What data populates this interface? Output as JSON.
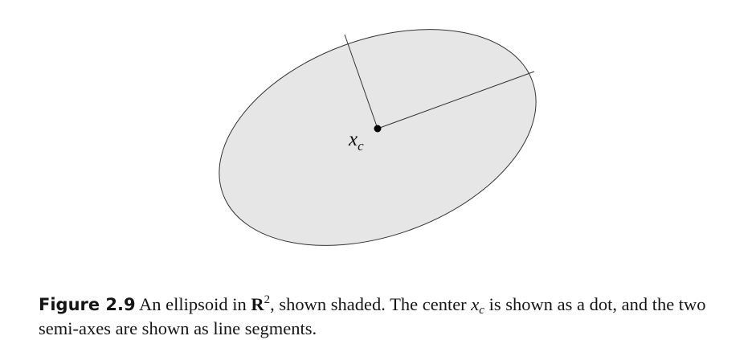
{
  "figure": {
    "fill_color": "#e6e6e6",
    "stroke_color": "#333333",
    "center_label": {
      "main": "x",
      "sub": "c"
    }
  },
  "caption": {
    "label": "Figure 2.9",
    "text_1": " An ellipsoid in ",
    "set_symbol": "R",
    "set_exponent": "2",
    "text_2": ", shown shaded.  The center ",
    "center_main": "x",
    "center_sub": "c",
    "text_3": " is shown as a dot, and the two semi-axes are shown as line segments."
  }
}
